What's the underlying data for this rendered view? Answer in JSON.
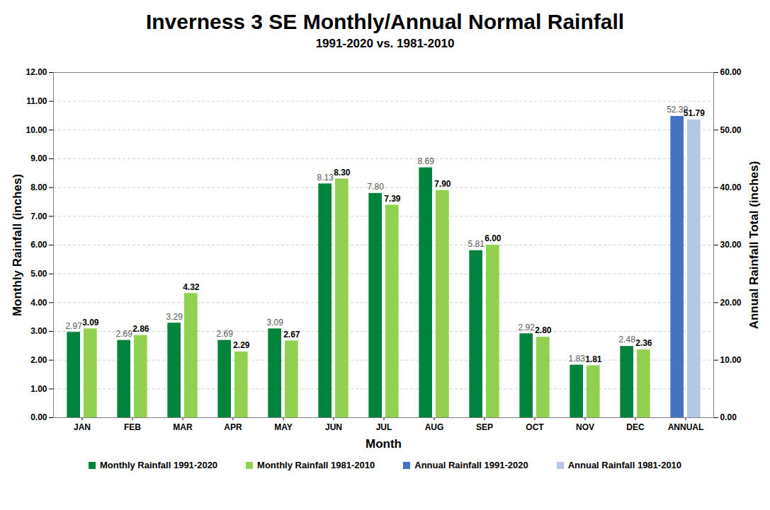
{
  "chart_data": {
    "type": "bar",
    "title": "Inverness 3 SE Monthly/Annual Normal Rainfall",
    "subtitle": "1991-2020 vs. 1981-2010",
    "x_label": "Month",
    "y_label": "Monthly Rainfall (inches)",
    "y2_label": "Annual Rainfall Total (inches)",
    "categories": [
      "JAN",
      "FEB",
      "MAR",
      "APR",
      "MAY",
      "JUN",
      "JUL",
      "AUG",
      "SEP",
      "OCT",
      "NOV",
      "DEC",
      "ANNUAL"
    ],
    "series": [
      {
        "name": "Monthly Rainfall 1991-2020",
        "color": "#00843d",
        "values": [
          2.97,
          2.69,
          3.29,
          2.69,
          3.09,
          8.13,
          7.8,
          8.69,
          5.81,
          2.92,
          1.83,
          2.48,
          null
        ],
        "value_labels": [
          "2.97",
          "2.69",
          "3.29",
          "2.69",
          "3.09",
          "8.13",
          "7.80",
          "8.69",
          "5.81",
          "2.92",
          "1.83",
          "2.48",
          null
        ]
      },
      {
        "name": "Monthly Rainfall 1981-2010",
        "color": "#92d050",
        "values": [
          3.09,
          2.86,
          4.32,
          2.29,
          2.67,
          8.3,
          7.39,
          7.9,
          6.0,
          2.8,
          1.81,
          2.36,
          null
        ],
        "value_labels": [
          "3.09",
          "2.86",
          "4.32",
          "2.29",
          "2.67",
          "8.30",
          "7.39",
          "7.90",
          "6.00",
          "2.80",
          "1.81",
          "2.36",
          null
        ]
      },
      {
        "name": "Annual Rainfall 1991-2020",
        "color": "#4472c4",
        "axis": "y2",
        "values": [
          null,
          null,
          null,
          null,
          null,
          null,
          null,
          null,
          null,
          null,
          null,
          null,
          52.39
        ],
        "value_labels": [
          null,
          null,
          null,
          null,
          null,
          null,
          null,
          null,
          null,
          null,
          null,
          null,
          "52.39"
        ]
      },
      {
        "name": "Annual Rainfall 1981-2010",
        "color": "#b4c7e7",
        "axis": "y2",
        "values": [
          null,
          null,
          null,
          null,
          null,
          null,
          null,
          null,
          null,
          null,
          null,
          null,
          51.79
        ],
        "value_labels": [
          null,
          null,
          null,
          null,
          null,
          null,
          null,
          null,
          null,
          null,
          null,
          null,
          "51.79"
        ]
      }
    ],
    "ylim": [
      0,
      12
    ],
    "yticks": [
      {
        "value": 0,
        "label": "0.00"
      },
      {
        "value": 1,
        "label": "1.00"
      },
      {
        "value": 2,
        "label": "2.00"
      },
      {
        "value": 3,
        "label": "3.00"
      },
      {
        "value": 4,
        "label": "4.00"
      },
      {
        "value": 5,
        "label": "5.00"
      },
      {
        "value": 6,
        "label": "6.00"
      },
      {
        "value": 7,
        "label": "7.00"
      },
      {
        "value": 8,
        "label": "8.00"
      },
      {
        "value": 9,
        "label": "9.00"
      },
      {
        "value": 10,
        "label": "10.00"
      },
      {
        "value": 11,
        "label": "11.00"
      },
      {
        "value": 12,
        "label": "12.00"
      }
    ],
    "y2lim": [
      0,
      60
    ],
    "y2ticks": [
      {
        "value": 0,
        "label": "0.00"
      },
      {
        "value": 10,
        "label": "10.00"
      },
      {
        "value": 20,
        "label": "20.00"
      },
      {
        "value": 30,
        "label": "30.00"
      },
      {
        "value": 40,
        "label": "40.00"
      },
      {
        "value": 50,
        "label": "50.00"
      },
      {
        "value": 60,
        "label": "60.00"
      }
    ],
    "grid": true,
    "legend": "bottom",
    "data_labels": true
  }
}
